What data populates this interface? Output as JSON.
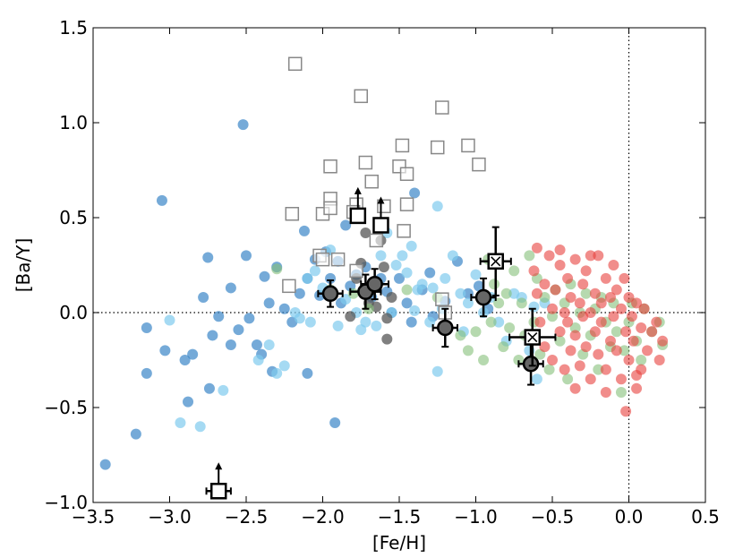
{
  "chart_data": {
    "type": "scatter",
    "xlabel": "[Fe/H]",
    "ylabel": "[Ba/Y]",
    "xlim": [
      -3.5,
      0.5
    ],
    "ylim": [
      -1.0,
      1.5
    ],
    "xticks": [
      -3.5,
      -3.0,
      -2.5,
      -2.0,
      -1.5,
      -1.0,
      -0.5,
      0.0,
      0.5
    ],
    "yticks": [
      -1.0,
      -0.5,
      0.0,
      0.5,
      1.0,
      1.5
    ],
    "xtick_labels": [
      "−3.5",
      "−3.0",
      "−2.5",
      "−2.0",
      "−1.5",
      "−1.0",
      "−0.5",
      "0.0",
      "0.5"
    ],
    "ytick_labels": [
      "−1.0",
      "−0.5",
      "0.0",
      "0.5",
      "1.0",
      "1.5"
    ],
    "reference_lines": {
      "x": 0.0,
      "y": 0.0,
      "style": "dotted"
    },
    "grid": false,
    "series": [
      {
        "marker": "circle",
        "color": "#3a86c8",
        "opacity": 0.7,
        "points": [
          [
            -3.42,
            -0.8
          ],
          [
            -3.22,
            -0.64
          ],
          [
            -3.15,
            -0.32
          ],
          [
            -3.15,
            -0.08
          ],
          [
            -3.05,
            0.59
          ],
          [
            -3.03,
            -0.2
          ],
          [
            -2.9,
            -0.25
          ],
          [
            -2.88,
            -0.47
          ],
          [
            -2.85,
            -0.22
          ],
          [
            -2.78,
            0.08
          ],
          [
            -2.75,
            0.29
          ],
          [
            -2.74,
            -0.4
          ],
          [
            -2.72,
            -0.12
          ],
          [
            -2.68,
            -0.02
          ],
          [
            -2.6,
            0.13
          ],
          [
            -2.6,
            -0.17
          ],
          [
            -2.55,
            -0.09
          ],
          [
            -2.52,
            0.99
          ],
          [
            -2.5,
            0.3
          ],
          [
            -2.48,
            -0.03
          ],
          [
            -2.43,
            -0.17
          ],
          [
            -2.4,
            -0.22
          ],
          [
            -2.38,
            0.19
          ],
          [
            -2.35,
            0.05
          ],
          [
            -2.33,
            -0.31
          ],
          [
            -2.3,
            0.24
          ],
          [
            -2.25,
            0.02
          ],
          [
            -2.2,
            -0.05
          ],
          [
            -2.15,
            0.1
          ],
          [
            -2.12,
            0.43
          ],
          [
            -2.1,
            -0.32
          ],
          [
            -2.1,
            0.18
          ],
          [
            -2.05,
            0.28
          ],
          [
            -2.02,
            0.09
          ],
          [
            -1.98,
            0.32
          ],
          [
            -1.95,
            0.18
          ],
          [
            -1.92,
            -0.58
          ],
          [
            -1.9,
            0.27
          ],
          [
            -1.88,
            0.05
          ],
          [
            -1.85,
            0.46
          ],
          [
            -1.82,
            0.14
          ],
          [
            -1.78,
            0.2
          ],
          [
            -1.72,
            0.24
          ],
          [
            -1.68,
            0.08
          ],
          [
            -1.62,
            0.18
          ],
          [
            -1.58,
            0.11
          ],
          [
            -1.55,
            0.0
          ],
          [
            -1.5,
            0.18
          ],
          [
            -1.45,
            0.05
          ],
          [
            -1.42,
            -0.05
          ],
          [
            -1.4,
            0.63
          ],
          [
            -1.35,
            0.12
          ],
          [
            -1.3,
            0.21
          ],
          [
            -1.28,
            -0.02
          ],
          [
            -1.2,
            0.06
          ],
          [
            -1.12,
            0.27
          ],
          [
            -1.05,
            0.1
          ],
          [
            -0.98,
            0.14
          ],
          [
            -0.92,
            0.02
          ]
        ]
      },
      {
        "marker": "circle",
        "color": "#7fcbee",
        "opacity": 0.7,
        "points": [
          [
            -3.0,
            -0.04
          ],
          [
            -2.93,
            -0.58
          ],
          [
            -2.8,
            -0.6
          ],
          [
            -2.65,
            -0.41
          ],
          [
            -2.42,
            -0.25
          ],
          [
            -2.35,
            -0.17
          ],
          [
            -2.3,
            -0.32
          ],
          [
            -2.25,
            -0.28
          ],
          [
            -2.18,
            0.0
          ],
          [
            -2.15,
            -0.03
          ],
          [
            -2.1,
            0.18
          ],
          [
            -2.08,
            -0.05
          ],
          [
            -2.05,
            0.22
          ],
          [
            -2.0,
            0.13
          ],
          [
            -1.95,
            0.33
          ],
          [
            -1.9,
            -0.07
          ],
          [
            -1.85,
            0.07
          ],
          [
            -1.78,
            0.0
          ],
          [
            -1.75,
            -0.09
          ],
          [
            -1.72,
            -0.05
          ],
          [
            -1.65,
            -0.07
          ],
          [
            -1.62,
            0.3
          ],
          [
            -1.58,
            0.42
          ],
          [
            -1.55,
            0.0
          ],
          [
            -1.52,
            0.25
          ],
          [
            -1.48,
            0.3
          ],
          [
            -1.45,
            0.21
          ],
          [
            -1.42,
            0.35
          ],
          [
            -1.4,
            0.01
          ],
          [
            -1.38,
            0.12
          ],
          [
            -1.35,
            0.15
          ],
          [
            -1.3,
            -0.05
          ],
          [
            -1.28,
            0.13
          ],
          [
            -1.25,
            0.56
          ],
          [
            -1.25,
            -0.31
          ],
          [
            -1.22,
            0.02
          ],
          [
            -1.2,
            0.18
          ],
          [
            -1.15,
            0.3
          ],
          [
            -1.1,
            0.1
          ],
          [
            -1.08,
            -0.1
          ],
          [
            -1.05,
            0.05
          ],
          [
            -1.0,
            0.2
          ],
          [
            -0.95,
            0.0
          ],
          [
            -0.9,
            0.08
          ],
          [
            -0.85,
            -0.05
          ],
          [
            -0.8,
            -0.15
          ],
          [
            -0.75,
            0.1
          ],
          [
            -0.7,
            0.08
          ],
          [
            -0.65,
            -0.2
          ],
          [
            -0.62,
            0.03
          ],
          [
            -0.6,
            -0.35
          ],
          [
            -0.55,
            0.05
          ]
        ]
      },
      {
        "marker": "circle",
        "color": "#555555",
        "opacity": 0.75,
        "points": [
          [
            -1.82,
            -0.02
          ],
          [
            -1.78,
            0.18
          ],
          [
            -1.75,
            0.26
          ],
          [
            -1.72,
            0.42
          ],
          [
            -1.7,
            0.05
          ],
          [
            -1.68,
            0.12
          ],
          [
            -1.65,
            0.03
          ],
          [
            -1.62,
            0.38
          ],
          [
            -1.6,
            0.24
          ],
          [
            -1.58,
            -0.03
          ],
          [
            -1.58,
            -0.14
          ],
          [
            -1.55,
            0.08
          ]
        ]
      },
      {
        "marker": "circle",
        "color": "#86c07a",
        "opacity": 0.6,
        "points": [
          [
            -2.3,
            0.23
          ],
          [
            -1.95,
            0.12
          ],
          [
            -1.8,
            0.1
          ],
          [
            -1.7,
            0.02
          ],
          [
            -1.45,
            0.12
          ],
          [
            -1.25,
            0.08
          ],
          [
            -1.2,
            -0.08
          ],
          [
            -1.1,
            -0.12
          ],
          [
            -1.05,
            -0.2
          ],
          [
            -1.0,
            -0.1
          ],
          [
            -0.95,
            -0.25
          ],
          [
            -0.92,
            0.28
          ],
          [
            -0.9,
            -0.05
          ],
          [
            -0.88,
            0.15
          ],
          [
            -0.85,
            0.05
          ],
          [
            -0.82,
            -0.18
          ],
          [
            -0.8,
            0.1
          ],
          [
            -0.78,
            -0.08
          ],
          [
            -0.75,
            0.22
          ],
          [
            -0.72,
            -0.25
          ],
          [
            -0.7,
            0.05
          ],
          [
            -0.68,
            -0.12
          ],
          [
            -0.65,
            0.3
          ],
          [
            -0.62,
            -0.05
          ],
          [
            -0.6,
            0.18
          ],
          [
            -0.58,
            -0.22
          ],
          [
            -0.55,
            0.08
          ],
          [
            -0.52,
            -0.3
          ],
          [
            -0.5,
            -0.02
          ],
          [
            -0.48,
            0.12
          ],
          [
            -0.45,
            -0.15
          ],
          [
            -0.42,
            0.05
          ],
          [
            -0.4,
            -0.35
          ],
          [
            -0.38,
            0.15
          ],
          [
            -0.35,
            -0.08
          ],
          [
            -0.32,
            0.0
          ],
          [
            -0.3,
            -0.22
          ],
          [
            -0.28,
            0.1
          ],
          [
            -0.25,
            -0.12
          ],
          [
            -0.22,
            0.02
          ],
          [
            -0.2,
            -0.3
          ],
          [
            -0.18,
            0.08
          ],
          [
            -0.15,
            -0.05
          ],
          [
            -0.12,
            -0.18
          ],
          [
            -0.1,
            0.05
          ],
          [
            -0.08,
            -0.1
          ],
          [
            -0.05,
            -0.42
          ],
          [
            -0.03,
            -0.2
          ],
          [
            0.0,
            -0.05
          ],
          [
            0.02,
            0.05
          ],
          [
            0.05,
            -0.15
          ],
          [
            0.08,
            -0.25
          ],
          [
            0.1,
            0.02
          ],
          [
            0.15,
            -0.1
          ],
          [
            0.2,
            -0.05
          ],
          [
            0.22,
            -0.17
          ]
        ]
      },
      {
        "marker": "circle",
        "color": "#e8413e",
        "opacity": 0.6,
        "points": [
          [
            -0.62,
            0.22
          ],
          [
            -0.6,
            0.1
          ],
          [
            -0.58,
            -0.05
          ],
          [
            -0.55,
            0.15
          ],
          [
            -0.55,
            -0.18
          ],
          [
            -0.52,
            0.3
          ],
          [
            -0.5,
            0.02
          ],
          [
            -0.5,
            -0.25
          ],
          [
            -0.48,
            0.12
          ],
          [
            -0.45,
            -0.1
          ],
          [
            -0.45,
            0.25
          ],
          [
            -0.42,
            0.0
          ],
          [
            -0.42,
            -0.3
          ],
          [
            -0.4,
            0.18
          ],
          [
            -0.4,
            -0.05
          ],
          [
            -0.38,
            0.08
          ],
          [
            -0.38,
            -0.2
          ],
          [
            -0.35,
            0.28
          ],
          [
            -0.35,
            -0.12
          ],
          [
            -0.32,
            0.05
          ],
          [
            -0.32,
            -0.28
          ],
          [
            -0.3,
            0.15
          ],
          [
            -0.3,
            -0.02
          ],
          [
            -0.28,
            -0.18
          ],
          [
            -0.28,
            0.22
          ],
          [
            -0.25,
            0.0
          ],
          [
            -0.25,
            -0.35
          ],
          [
            -0.22,
            0.1
          ],
          [
            -0.22,
            -0.1
          ],
          [
            -0.2,
            0.3
          ],
          [
            -0.2,
            -0.22
          ],
          [
            -0.18,
            0.05
          ],
          [
            -0.18,
            -0.05
          ],
          [
            -0.15,
            0.18
          ],
          [
            -0.15,
            -0.3
          ],
          [
            -0.12,
            0.08
          ],
          [
            -0.12,
            -0.15
          ],
          [
            -0.1,
            0.25
          ],
          [
            -0.1,
            -0.02
          ],
          [
            -0.08,
            -0.2
          ],
          [
            -0.08,
            0.12
          ],
          [
            -0.05,
            0.02
          ],
          [
            -0.05,
            -0.35
          ],
          [
            -0.03,
            0.18
          ],
          [
            -0.02,
            -0.1
          ],
          [
            0.0,
            0.08
          ],
          [
            0.0,
            -0.25
          ],
          [
            0.02,
            -0.02
          ],
          [
            0.03,
            -0.15
          ],
          [
            0.05,
            0.05
          ],
          [
            0.05,
            -0.4
          ],
          [
            0.08,
            -0.08
          ],
          [
            0.08,
            -0.3
          ],
          [
            0.1,
            0.02
          ],
          [
            0.12,
            -0.2
          ],
          [
            0.15,
            -0.1
          ],
          [
            0.18,
            -0.05
          ],
          [
            0.2,
            -0.25
          ],
          [
            0.22,
            -0.15
          ],
          [
            -0.02,
            -0.52
          ],
          [
            0.05,
            -0.33
          ],
          [
            -0.6,
            0.34
          ],
          [
            -0.45,
            0.33
          ],
          [
            -0.35,
            -0.4
          ],
          [
            -0.25,
            0.3
          ],
          [
            -0.15,
            -0.42
          ]
        ]
      },
      {
        "marker": "open-square",
        "color": "#888888",
        "points": [
          [
            -2.18,
            1.31
          ],
          [
            -1.75,
            1.14
          ],
          [
            -1.22,
            1.08
          ],
          [
            -1.48,
            0.88
          ],
          [
            -1.25,
            0.87
          ],
          [
            -1.05,
            0.88
          ],
          [
            -1.72,
            0.79
          ],
          [
            -1.5,
            0.77
          ],
          [
            -1.95,
            0.77
          ],
          [
            -0.98,
            0.78
          ],
          [
            -1.45,
            0.73
          ],
          [
            -1.68,
            0.69
          ],
          [
            -1.95,
            0.6
          ],
          [
            -1.45,
            0.57
          ],
          [
            -1.78,
            0.57
          ],
          [
            -1.6,
            0.56
          ],
          [
            -2.2,
            0.52
          ],
          [
            -2.0,
            0.52
          ],
          [
            -1.95,
            0.55
          ],
          [
            -1.8,
            0.53
          ],
          [
            -1.47,
            0.43
          ],
          [
            -1.9,
            0.28
          ],
          [
            -1.78,
            0.22
          ],
          [
            -2.02,
            0.3
          ],
          [
            -2.0,
            0.28
          ],
          [
            -1.65,
            0.38
          ],
          [
            -1.2,
            0.0
          ],
          [
            -1.22,
            0.07
          ],
          [
            -2.22,
            0.14
          ]
        ]
      }
    ],
    "highlighted": [
      {
        "marker": "filled-circle",
        "x": -1.95,
        "y": 0.1,
        "xerr": 0.08,
        "yerr": 0.07
      },
      {
        "marker": "filled-circle",
        "x": -1.72,
        "y": 0.11,
        "xerr": 0.1,
        "yerr": 0.09
      },
      {
        "marker": "filled-circle",
        "x": -1.66,
        "y": 0.15,
        "xerr": 0.09,
        "yerr": 0.08
      },
      {
        "marker": "filled-circle",
        "x": -1.2,
        "y": -0.08,
        "xerr": 0.08,
        "yerr": 0.1
      },
      {
        "marker": "filled-circle",
        "x": -0.95,
        "y": 0.08,
        "xerr": 0.08,
        "yerr": 0.1
      },
      {
        "marker": "filled-circle",
        "x": -0.64,
        "y": -0.27,
        "xerr": 0.08,
        "yerr": 0.11
      },
      {
        "marker": "open-square",
        "x": -1.77,
        "y": 0.51,
        "arrow": "up"
      },
      {
        "marker": "open-square",
        "x": -1.62,
        "y": 0.46,
        "arrow": "up"
      },
      {
        "marker": "open-square",
        "x": -2.68,
        "y": -0.94,
        "xerr": 0.08,
        "arrow": "up"
      },
      {
        "marker": "crossed-square",
        "x": -0.87,
        "y": 0.27,
        "xerr": 0.1,
        "yerr": 0.18
      },
      {
        "marker": "crossed-square",
        "x": -0.63,
        "y": -0.13,
        "xerr": 0.15,
        "yerr": 0.15
      }
    ]
  }
}
